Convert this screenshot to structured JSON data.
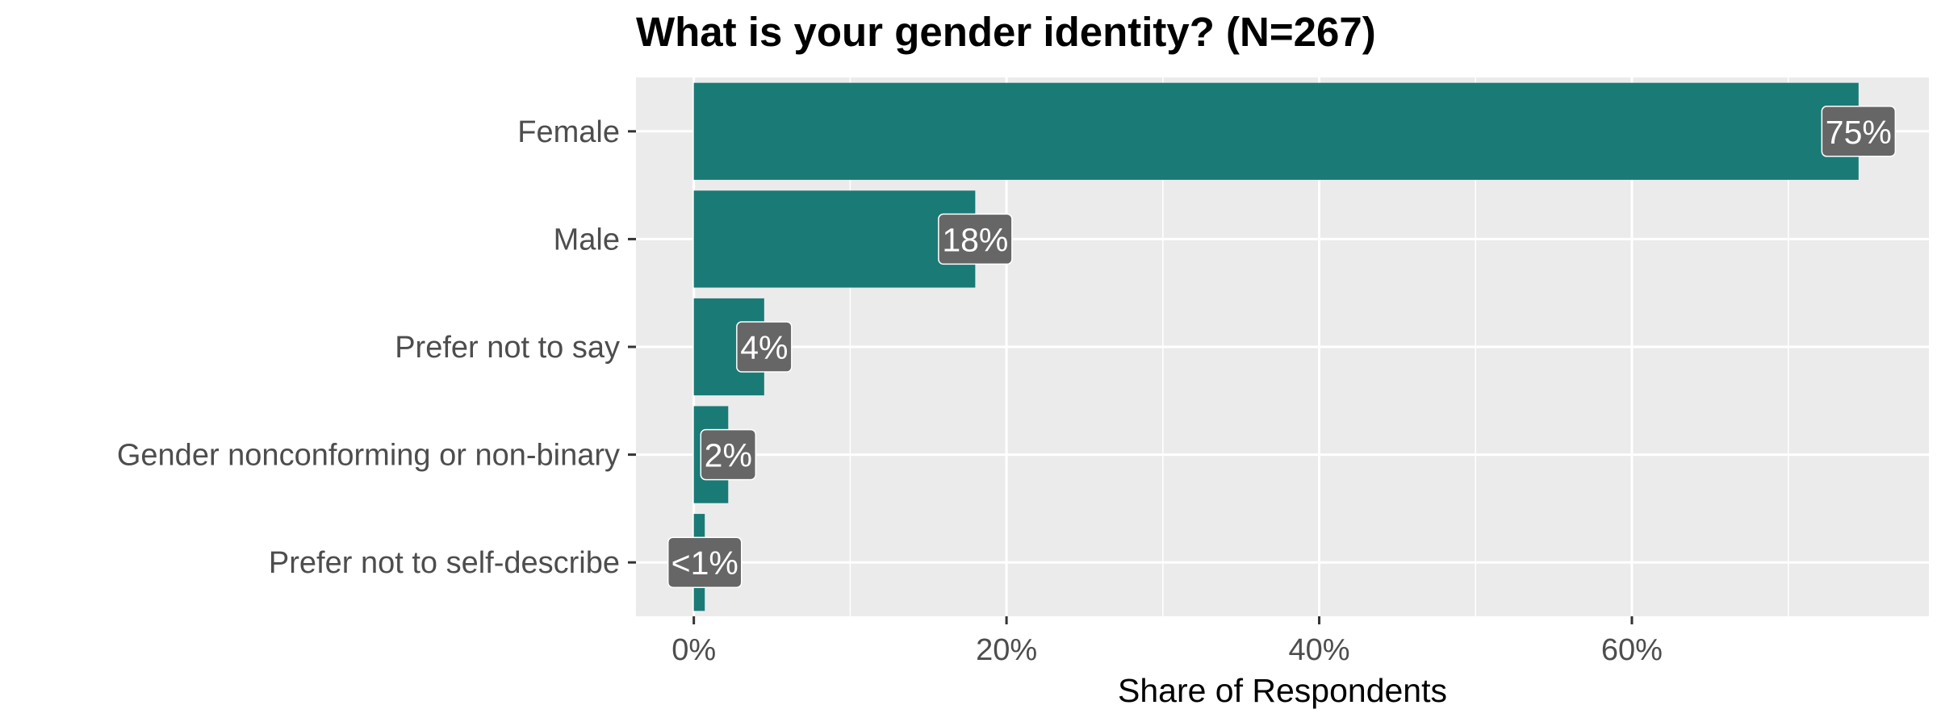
{
  "chart_data": {
    "type": "bar",
    "orientation": "horizontal",
    "title": "What is your gender identity? (N=267)",
    "xlabel": "Share of Respondents",
    "ylabel": "",
    "categories": [
      "Female",
      "Male",
      "Prefer not to say",
      "Gender nonconforming or non-binary",
      "Prefer not to self-describe"
    ],
    "values": [
      74.5,
      18.0,
      4.5,
      2.2,
      0.7
    ],
    "data_labels": [
      "75%",
      "18%",
      "4%",
      "2%",
      "<1%"
    ],
    "xlim": [
      -3.7,
      79
    ],
    "x_ticks": [
      0,
      20,
      40,
      60
    ],
    "x_tick_labels": [
      "0%",
      "20%",
      "40%",
      "60%"
    ],
    "grid": true,
    "legend": "none",
    "colors": {
      "bar": "#1a7a76",
      "panel": "#ebebeb",
      "grid": "#ffffff",
      "label_box": "#666666",
      "label_text": "#ffffff"
    }
  }
}
